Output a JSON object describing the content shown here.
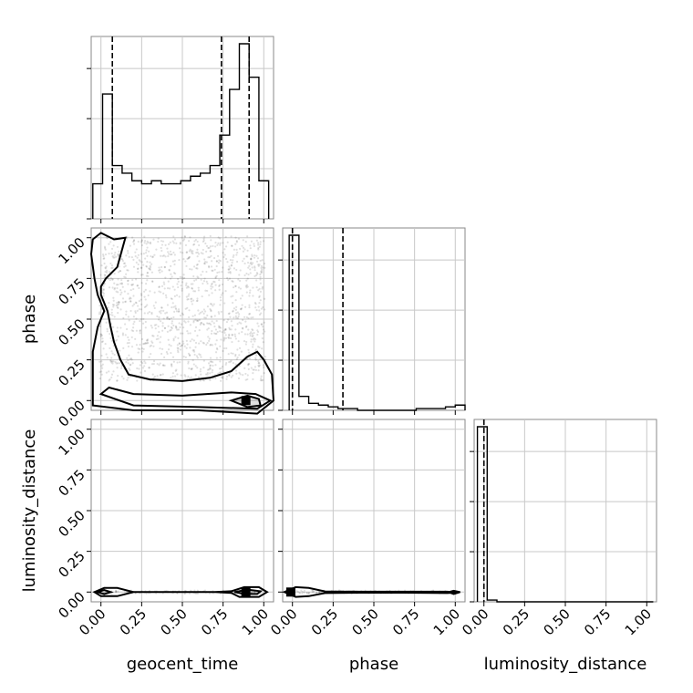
{
  "chart_data": {
    "type": "corner",
    "parameters": [
      "geocent_time",
      "phase",
      "luminosity_distance"
    ],
    "axis_ticks": [
      "0.00",
      "0.25",
      "0.50",
      "0.75",
      "1.00"
    ],
    "axis_range": [
      -0.06,
      1.06
    ],
    "grid": true,
    "histograms": [
      {
        "parameter": "geocent_time",
        "bin_edges": [
          -0.05,
          0.01,
          0.07,
          0.13,
          0.19,
          0.25,
          0.31,
          0.37,
          0.43,
          0.49,
          0.55,
          0.61,
          0.67,
          0.73,
          0.79,
          0.85,
          0.91,
          0.97,
          1.03
        ],
        "counts": [
          0.23,
          0.82,
          0.35,
          0.3,
          0.25,
          0.23,
          0.25,
          0.23,
          0.23,
          0.25,
          0.28,
          0.3,
          0.35,
          0.55,
          0.85,
          1.15,
          0.93,
          0.25
        ],
        "quantile_lines": [
          0.07,
          0.74,
          0.91
        ]
      },
      {
        "parameter": "phase",
        "bin_edges": [
          -0.02,
          0.04,
          0.1,
          0.16,
          0.22,
          0.28,
          0.34,
          0.4,
          0.46,
          0.52,
          0.58,
          0.64,
          0.7,
          0.76,
          0.82,
          0.88,
          0.94,
          1.0,
          1.06
        ],
        "counts": [
          1.0,
          0.08,
          0.04,
          0.03,
          0.02,
          0.01,
          0.01,
          0.0,
          0.0,
          0.0,
          0.0,
          0.0,
          0.0,
          0.01,
          0.01,
          0.01,
          0.02,
          0.03
        ],
        "quantile_lines": [
          0.0,
          0.31
        ]
      },
      {
        "parameter": "luminosity_distance",
        "bin_edges": [
          -0.04,
          0.02,
          0.08,
          0.14,
          0.2,
          0.26,
          0.32,
          0.38,
          0.44,
          0.5,
          0.56,
          0.62,
          0.68,
          0.74,
          0.8,
          0.86,
          0.92,
          0.98,
          1.04
        ],
        "counts": [
          1.0,
          0.01,
          0.0,
          0.0,
          0.0,
          0.0,
          0.0,
          0.0,
          0.0,
          0.0,
          0.0,
          0.0,
          0.0,
          0.0,
          0.0,
          0.0,
          0.0,
          0.0
        ],
        "quantile_lines": [
          0.0
        ]
      }
    ],
    "joint_panels": [
      {
        "x_param": "geocent_time",
        "y_param": "phase",
        "contours": [
          [
            [
              -0.05,
              0.99
            ],
            [
              0.0,
              1.03
            ],
            [
              0.08,
              0.99
            ],
            [
              0.15,
              1.0
            ],
            [
              0.1,
              0.82
            ],
            [
              0.03,
              0.75
            ],
            [
              0.0,
              0.7
            ],
            [
              0.0,
              0.65
            ],
            [
              0.04,
              0.55
            ],
            [
              0.06,
              0.45
            ],
            [
              0.08,
              0.36
            ],
            [
              0.12,
              0.25
            ],
            [
              0.17,
              0.16
            ],
            [
              0.3,
              0.13
            ],
            [
              0.5,
              0.12
            ],
            [
              0.67,
              0.14
            ],
            [
              0.8,
              0.18
            ],
            [
              0.9,
              0.27
            ],
            [
              0.96,
              0.3
            ],
            [
              1.0,
              0.25
            ],
            [
              1.05,
              0.16
            ],
            [
              1.06,
              0.0
            ],
            [
              0.96,
              -0.08
            ],
            [
              0.6,
              -0.06
            ],
            [
              0.2,
              -0.06
            ],
            [
              -0.05,
              -0.03
            ],
            [
              -0.05,
              0.3
            ],
            [
              -0.02,
              0.45
            ],
            [
              0.02,
              0.55
            ],
            [
              -0.02,
              0.65
            ],
            [
              -0.04,
              0.75
            ],
            [
              -0.06,
              0.9
            ],
            [
              -0.05,
              0.99
            ]
          ],
          [
            [
              0.0,
              0.04
            ],
            [
              0.05,
              0.08
            ],
            [
              0.2,
              0.04
            ],
            [
              0.5,
              0.03
            ],
            [
              0.8,
              0.05
            ],
            [
              0.95,
              0.04
            ],
            [
              1.04,
              0.0
            ],
            [
              0.96,
              -0.05
            ],
            [
              0.6,
              -0.04
            ],
            [
              0.2,
              -0.03
            ],
            [
              0.0,
              0.04
            ]
          ],
          [
            [
              0.8,
              0.0
            ],
            [
              0.9,
              0.03
            ],
            [
              0.97,
              0.01
            ],
            [
              0.98,
              -0.03
            ],
            [
              0.9,
              -0.04
            ],
            [
              0.8,
              0.0
            ]
          ]
        ],
        "peak": [
          0.89,
          0.0
        ]
      },
      {
        "x_param": "geocent_time",
        "y_param": "luminosity_distance",
        "contours": [
          [
            [
              -0.04,
              0.0
            ],
            [
              0.02,
              0.025
            ],
            [
              0.1,
              0.025
            ],
            [
              0.2,
              0.0
            ],
            [
              0.3,
              0.0
            ],
            [
              0.7,
              0.0
            ],
            [
              0.8,
              0.005
            ],
            [
              0.88,
              0.03
            ],
            [
              0.97,
              0.03
            ],
            [
              1.02,
              0.0
            ],
            [
              0.97,
              -0.03
            ],
            [
              0.85,
              -0.03
            ],
            [
              0.8,
              -0.005
            ],
            [
              0.7,
              0.0
            ],
            [
              0.3,
              0.0
            ],
            [
              0.2,
              0.0
            ],
            [
              0.1,
              -0.025
            ],
            [
              0.0,
              -0.025
            ],
            [
              -0.04,
              0.0
            ]
          ],
          [
            [
              -0.02,
              0.0
            ],
            [
              0.02,
              0.012
            ],
            [
              0.06,
              0.0
            ],
            [
              0.02,
              -0.012
            ],
            [
              -0.02,
              0.0
            ]
          ],
          [
            [
              0.82,
              0.0
            ],
            [
              0.9,
              0.015
            ],
            [
              0.98,
              0.005
            ],
            [
              0.96,
              -0.012
            ],
            [
              0.88,
              -0.012
            ],
            [
              0.82,
              0.0
            ]
          ]
        ],
        "peak": [
          0.89,
          0.0
        ]
      },
      {
        "x_param": "phase",
        "y_param": "luminosity_distance",
        "contours": [
          [
            [
              -0.05,
              0.0
            ],
            [
              0.02,
              0.03
            ],
            [
              0.1,
              0.025
            ],
            [
              0.2,
              0.004
            ],
            [
              0.4,
              0.002
            ],
            [
              0.7,
              0.002
            ],
            [
              0.95,
              0.002
            ],
            [
              1.02,
              -0.002
            ],
            [
              0.95,
              -0.006
            ],
            [
              0.7,
              -0.004
            ],
            [
              0.4,
              -0.004
            ],
            [
              0.2,
              -0.006
            ],
            [
              0.1,
              -0.025
            ],
            [
              0.02,
              -0.03
            ],
            [
              -0.05,
              0.0
            ]
          ],
          [
            [
              0.96,
              0.0
            ],
            [
              0.99,
              0.008
            ],
            [
              1.03,
              0.0
            ],
            [
              0.99,
              -0.012
            ],
            [
              0.96,
              0.0
            ]
          ]
        ],
        "peak": [
          -0.01,
          0.0
        ]
      }
    ]
  }
}
